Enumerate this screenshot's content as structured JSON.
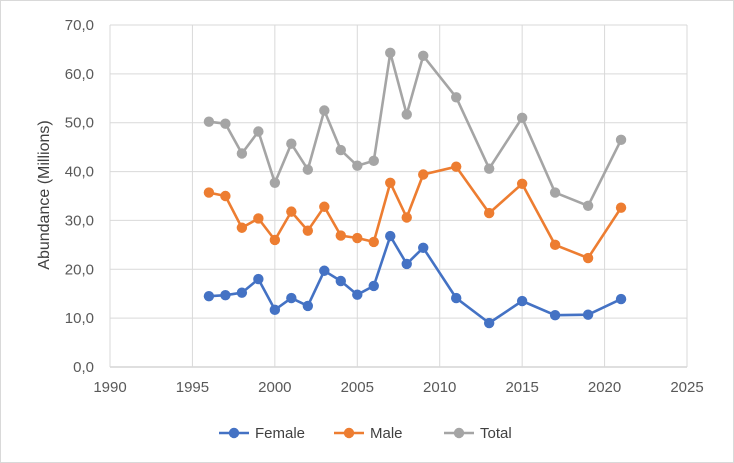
{
  "chart_data": {
    "type": "line",
    "title": "",
    "xlabel": "",
    "ylabel": "Abundance (Millions)",
    "xlim": [
      1990,
      2025
    ],
    "ylim": [
      0,
      70
    ],
    "x_ticks": [
      1990,
      1995,
      2000,
      2005,
      2010,
      2015,
      2020,
      2025
    ],
    "y_ticks": [
      0,
      10,
      20,
      30,
      40,
      50,
      60,
      70
    ],
    "y_tick_labels": [
      "0,0",
      "10,0",
      "20,0",
      "30,0",
      "40,0",
      "50,0",
      "60,0",
      "70,0"
    ],
    "grid": "vertical-and-horizontal",
    "legend_position": "bottom",
    "x": [
      1996,
      1997,
      1998,
      1999,
      2000,
      2001,
      2002,
      2003,
      2004,
      2005,
      2006,
      2007,
      2008,
      2009,
      2011,
      2013,
      2015,
      2017,
      2019,
      2021
    ],
    "series": [
      {
        "name": "Female",
        "color": "#4472c4",
        "values": [
          14.5,
          14.7,
          15.2,
          18.0,
          11.7,
          14.1,
          12.5,
          19.7,
          17.6,
          14.8,
          16.6,
          26.8,
          21.1,
          24.4,
          14.1,
          9.0,
          13.5,
          10.6,
          10.7,
          13.9
        ]
      },
      {
        "name": "Male",
        "color": "#ed7d31",
        "values": [
          35.7,
          35.0,
          28.5,
          30.4,
          26.0,
          31.8,
          27.9,
          32.8,
          26.9,
          26.4,
          25.6,
          37.7,
          30.6,
          39.4,
          41.0,
          31.5,
          37.5,
          25.0,
          22.3,
          32.6
        ]
      },
      {
        "name": "Total",
        "color": "#a5a5a5",
        "values": [
          50.2,
          49.8,
          43.7,
          48.2,
          37.7,
          45.7,
          40.4,
          52.5,
          44.4,
          41.2,
          42.2,
          64.3,
          51.7,
          63.7,
          55.2,
          40.6,
          51.0,
          35.7,
          33.0,
          46.5
        ]
      }
    ]
  }
}
